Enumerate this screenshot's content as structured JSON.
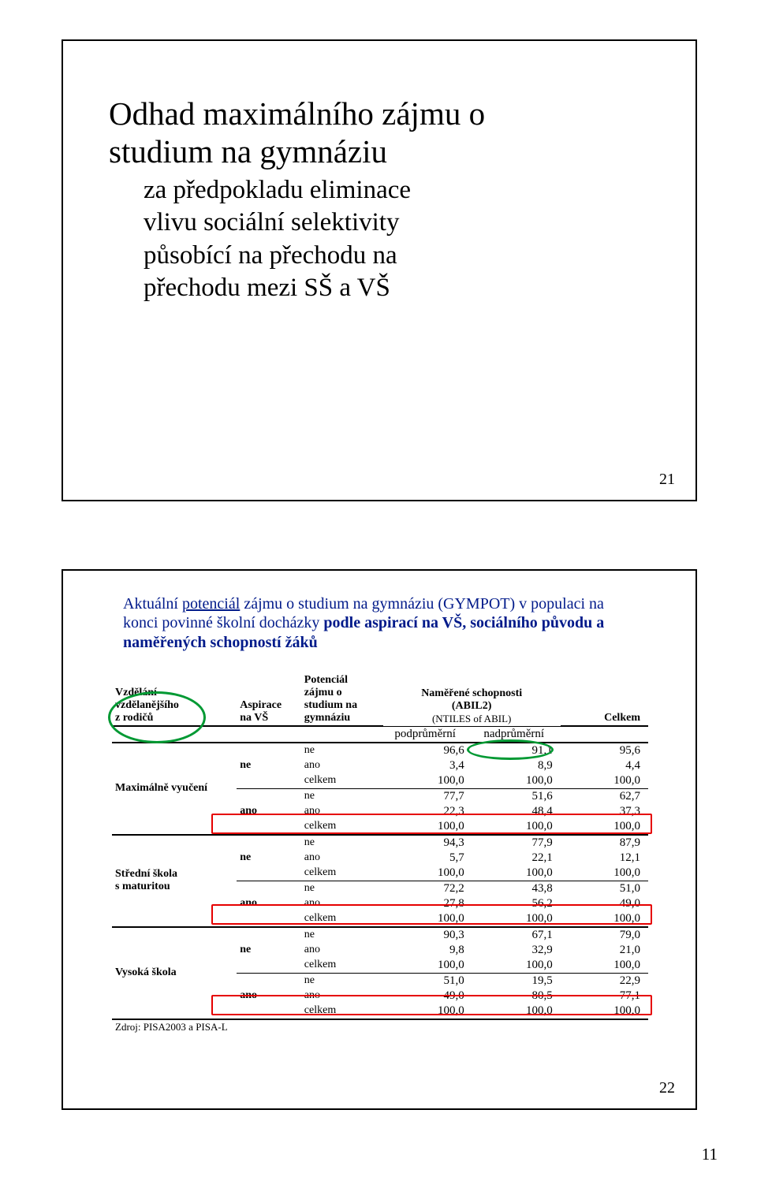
{
  "page_number": "11",
  "slide1": {
    "number": "21",
    "title_l1": "Odhad maximálního zájmu o",
    "title_l2": "studium na gymnáziu",
    "sub_l1": "za předpokladu eliminace",
    "sub_l2": "vlivu sociální selektivity",
    "sub_l3": "působící na přechodu na",
    "sub_l4": "přechodu mezi SŠ a VŠ"
  },
  "slide2": {
    "number": "22",
    "title_pre": "Aktuální ",
    "title_u": "potenciál",
    "title_post1": " zájmu o studium na gymnáziu (GYMPOT) v populaci na",
    "title_l2": "konci povinné školní docházky ",
    "title_bold": "podle aspirací na VŠ, sociálního původu a",
    "title_l3": "naměřených schopností žáků",
    "headers": {
      "h1": "Vzdělání vzdělanějšího z rodičů",
      "h2": "Aspirace na VŠ",
      "h3": "Potenciál zájmu o studium na gymnáziu",
      "h4_l1": "Naměřené schopnosti",
      "h4_l2": "(ABIL2)",
      "h4_sub": "(NTILES of ABIL)",
      "h5": "Celkem",
      "sub_lo": "podprůměrní",
      "sub_hi": "nadprůměrní"
    },
    "row_labels": {
      "ne": "ne",
      "ano": "ano",
      "celkem": "celkem"
    },
    "groups": [
      {
        "edu": "Maximálně vyučení",
        "blocks": [
          {
            "asp": "ne",
            "rows": [
              {
                "pot": "ne",
                "lo": "96,6",
                "hi": "91,1",
                "tot": "95,6"
              },
              {
                "pot": "ano",
                "lo": "3,4",
                "hi": "8,9",
                "tot": "4,4"
              },
              {
                "pot": "celkem",
                "lo": "100,0",
                "hi": "100,0",
                "tot": "100,0"
              }
            ]
          },
          {
            "asp": "ano",
            "rows": [
              {
                "pot": "ne",
                "lo": "77,7",
                "hi": "51,6",
                "tot": "62,7"
              },
              {
                "pot": "ano",
                "lo": "22,3",
                "hi": "48,4",
                "tot": "37,3",
                "hl": true
              },
              {
                "pot": "celkem",
                "lo": "100,0",
                "hi": "100,0",
                "tot": "100,0"
              }
            ]
          }
        ]
      },
      {
        "edu": "Střední škola s maturitou",
        "blocks": [
          {
            "asp": "ne",
            "rows": [
              {
                "pot": "ne",
                "lo": "94,3",
                "hi": "77,9",
                "tot": "87,9"
              },
              {
                "pot": "ano",
                "lo": "5,7",
                "hi": "22,1",
                "tot": "12,1"
              },
              {
                "pot": "celkem",
                "lo": "100,0",
                "hi": "100,0",
                "tot": "100,0"
              }
            ]
          },
          {
            "asp": "ano",
            "rows": [
              {
                "pot": "ne",
                "lo": "72,2",
                "hi": "43,8",
                "tot": "51,0"
              },
              {
                "pot": "ano",
                "lo": "27,8",
                "hi": "56,2",
                "tot": "49,0",
                "hl": true
              },
              {
                "pot": "celkem",
                "lo": "100,0",
                "hi": "100,0",
                "tot": "100,0"
              }
            ]
          }
        ]
      },
      {
        "edu": "Vysoká škola",
        "blocks": [
          {
            "asp": "ne",
            "rows": [
              {
                "pot": "ne",
                "lo": "90,3",
                "hi": "67,1",
                "tot": "79,0"
              },
              {
                "pot": "ano",
                "lo": "9,8",
                "hi": "32,9",
                "tot": "21,0"
              },
              {
                "pot": "celkem",
                "lo": "100,0",
                "hi": "100,0",
                "tot": "100,0"
              }
            ]
          },
          {
            "asp": "ano",
            "rows": [
              {
                "pot": "ne",
                "lo": "51,0",
                "hi": "19,5",
                "tot": "22,9"
              },
              {
                "pot": "ano",
                "lo": "49,0",
                "hi": "80,5",
                "tot": "77,1",
                "hl": true
              },
              {
                "pot": "celkem",
                "lo": "100,0",
                "hi": "100,0",
                "tot": "100,0"
              }
            ]
          }
        ]
      }
    ],
    "source": "Zdroj: PISA2003 a PISA-L"
  },
  "colors": {
    "title_blue": "#001a8a",
    "red": "#e60000",
    "green": "#009933",
    "black": "#000000",
    "white": "#ffffff"
  }
}
